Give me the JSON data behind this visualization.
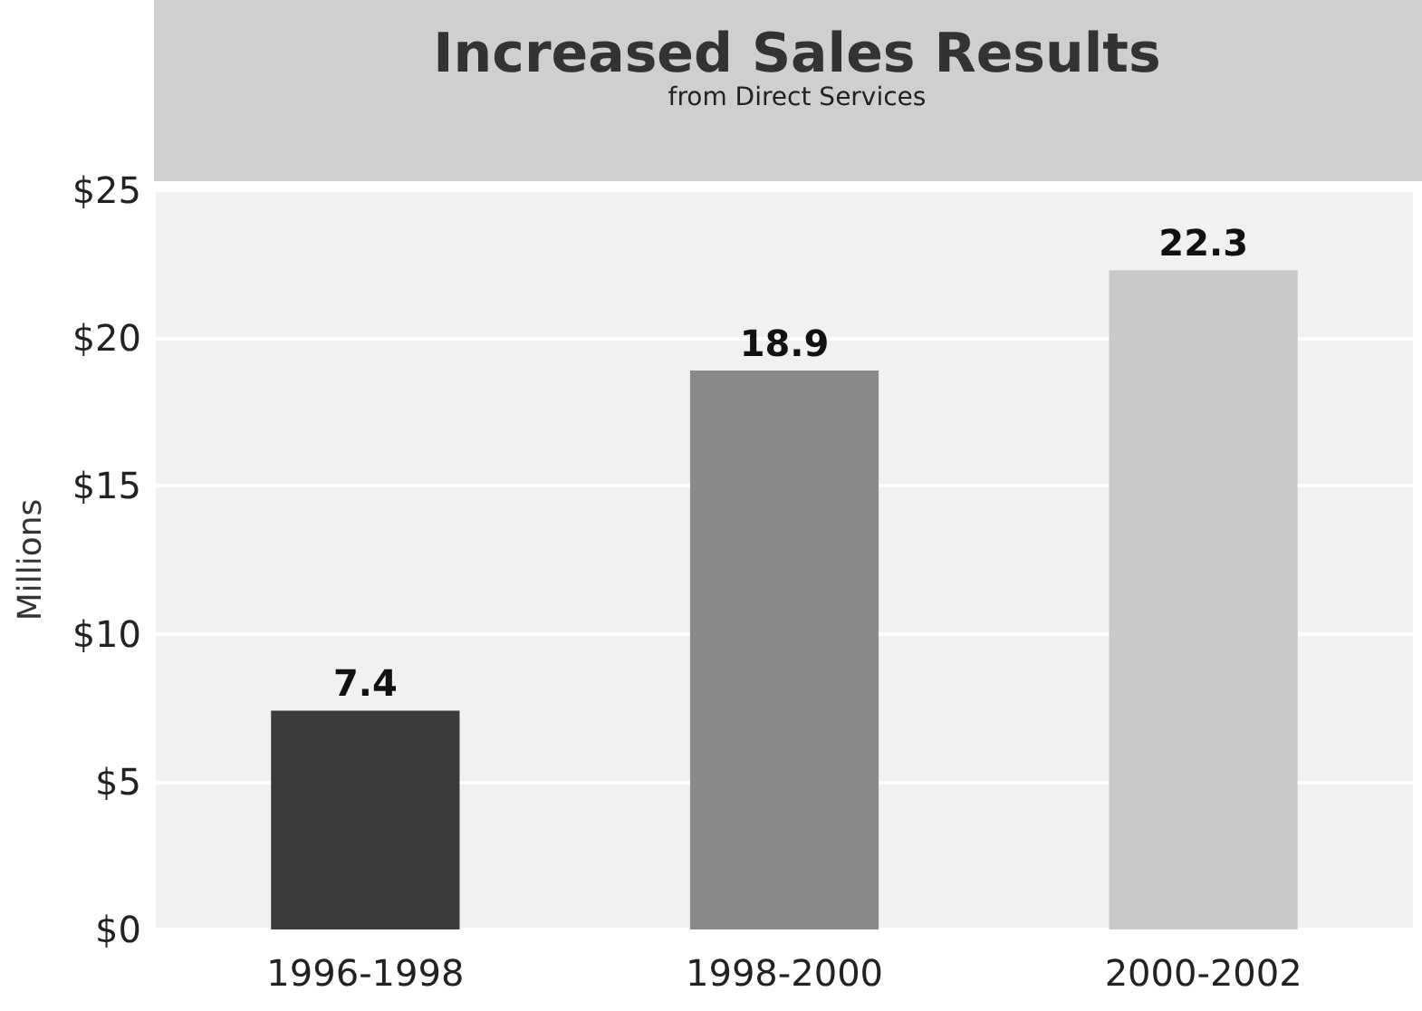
{
  "chart_data": {
    "type": "bar",
    "title": "Increased Sales Results",
    "subtitle": "from Direct Services",
    "ylabel": "Millions",
    "categories": [
      "1996-1998",
      "1998-2000",
      "2000-2002"
    ],
    "values": [
      7.4,
      18.9,
      22.3
    ],
    "colors": [
      "#3b3b3b",
      "#8a8a8a",
      "#c9c9c9"
    ],
    "data_labels": true,
    "ylim": [
      0,
      25
    ],
    "yticks": [
      {
        "value": 0,
        "label": "$0"
      },
      {
        "value": 5,
        "label": "$5"
      },
      {
        "value": 10,
        "label": "$10"
      },
      {
        "value": 15,
        "label": "$15"
      },
      {
        "value": 20,
        "label": "$20"
      },
      {
        "value": 25,
        "label": "$25"
      }
    ],
    "grid": "y"
  }
}
